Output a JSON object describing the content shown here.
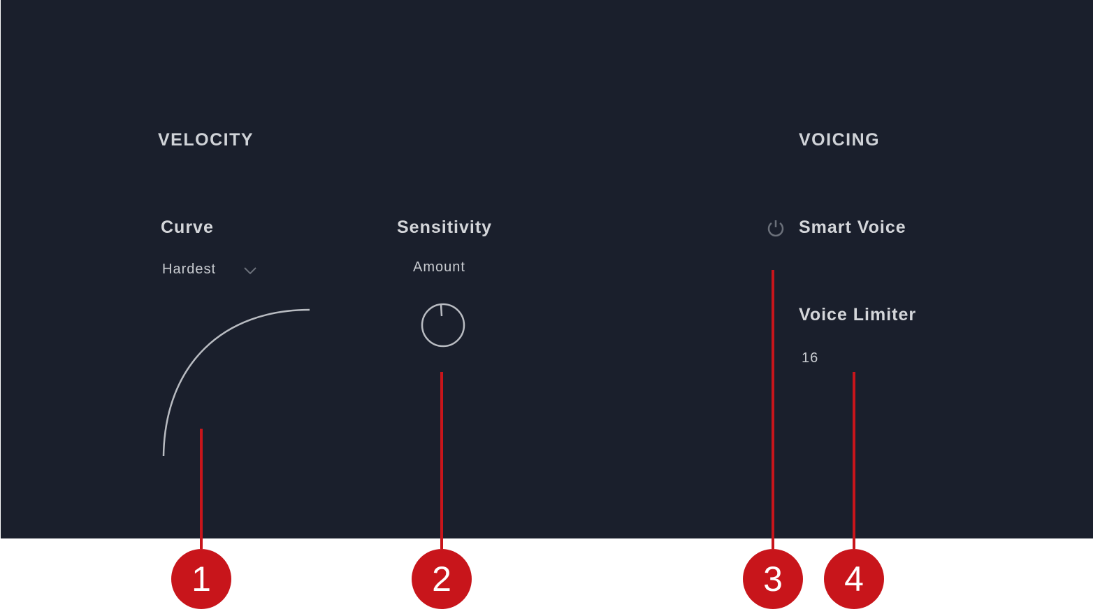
{
  "velocity": {
    "title": "VELOCITY",
    "curve": {
      "label": "Curve",
      "selected": "Hardest"
    },
    "sensitivity": {
      "label": "Sensitivity",
      "amount_label": "Amount"
    }
  },
  "voicing": {
    "title": "VOICING",
    "smart_voice": {
      "label": "Smart Voice",
      "icon": "power-icon"
    },
    "voice_limiter": {
      "label": "Voice Limiter",
      "value": "16"
    }
  },
  "callouts": [
    "1",
    "2",
    "3",
    "4"
  ],
  "colors": {
    "panel": "#1a1f2c",
    "callout": "#c8151b"
  }
}
